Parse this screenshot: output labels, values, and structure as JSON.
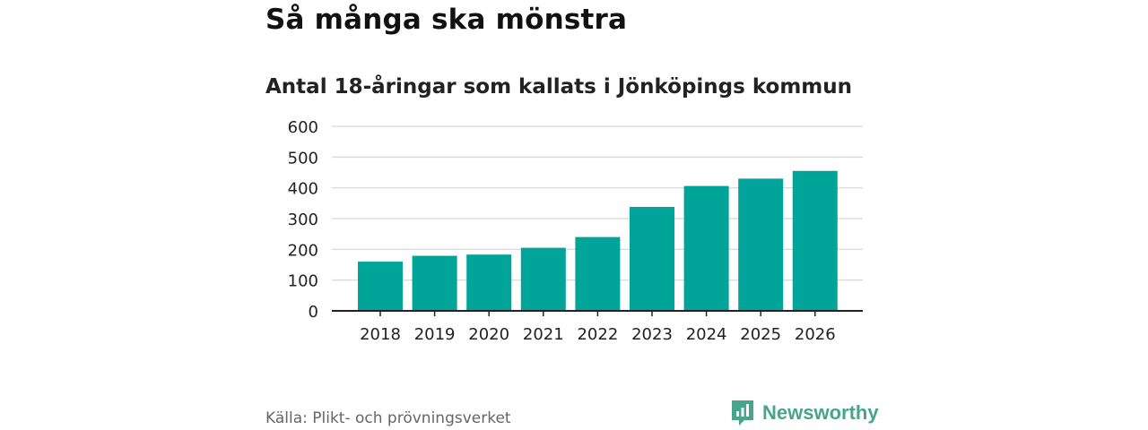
{
  "header": {
    "title": "Så många ska mönstra",
    "subtitle": "Antal 18-åringar som kallats i Jönköpings kommun"
  },
  "footer": {
    "source": "Källa: Plikt- och prövningsverket",
    "brand": "Newsworthy"
  },
  "colors": {
    "bar": "#00a499",
    "grid": "#dddddd",
    "axis": "#222222",
    "brand": "#46a58b"
  },
  "chart_data": {
    "type": "bar",
    "title": "Så många ska mönstra",
    "subtitle": "Antal 18-åringar som kallats i Jönköpings kommun",
    "categories": [
      "2018",
      "2019",
      "2020",
      "2021",
      "2022",
      "2023",
      "2024",
      "2025",
      "2026"
    ],
    "values": [
      160,
      179,
      183,
      205,
      240,
      338,
      406,
      430,
      455
    ],
    "xlabel": "",
    "ylabel": "",
    "ylim": [
      0,
      600
    ],
    "yticks": [
      0,
      100,
      200,
      300,
      400,
      500,
      600
    ],
    "grid": true
  }
}
